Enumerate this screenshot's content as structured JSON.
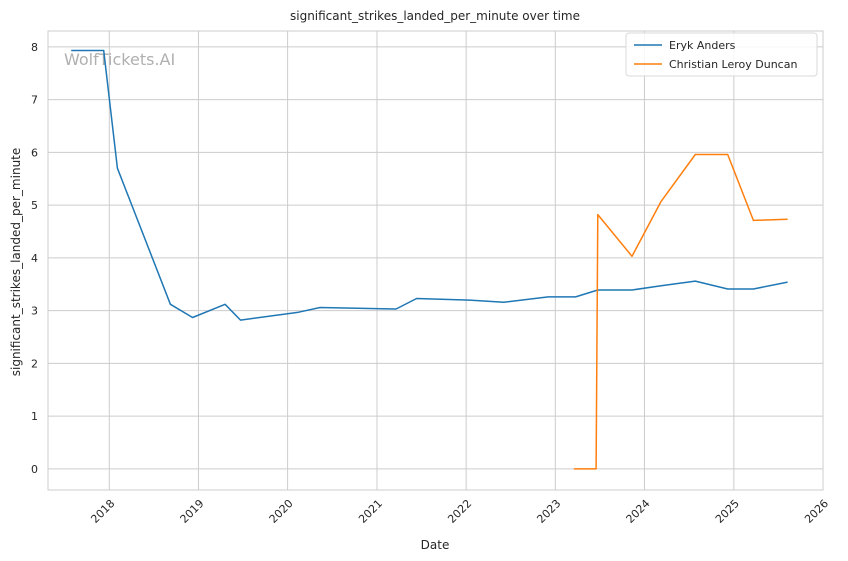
{
  "chart_data": {
    "type": "line",
    "title": "significant_strikes_landed_per_minute over time",
    "xlabel": "Date",
    "ylabel": "significant_strikes_landed_per_minute",
    "xlim": [
      "2017-04-25",
      "2026-01-01"
    ],
    "ylim": [
      -0.4,
      8.3
    ],
    "x_ticks": [
      "2018",
      "2019",
      "2020",
      "2021",
      "2022",
      "2023",
      "2024",
      "2025",
      "2026"
    ],
    "y_ticks": [
      0,
      1,
      2,
      3,
      4,
      5,
      6,
      7,
      8
    ],
    "grid": true,
    "legend_position": "top-right",
    "watermark": "WolfTickets.AI",
    "series": [
      {
        "name": "Eryk Anders",
        "color": "#1f77b4",
        "points": [
          {
            "x": "2017-07-29",
            "y": 7.93
          },
          {
            "x": "2017-12-09",
            "y": 7.93
          },
          {
            "x": "2018-02-03",
            "y": 5.7
          },
          {
            "x": "2018-09-08",
            "y": 3.12
          },
          {
            "x": "2018-12-08",
            "y": 2.87
          },
          {
            "x": "2019-04-20",
            "y": 3.12
          },
          {
            "x": "2019-06-22",
            "y": 2.82
          },
          {
            "x": "2020-02-15",
            "y": 2.97
          },
          {
            "x": "2020-05-13",
            "y": 3.06
          },
          {
            "x": "2021-03-20",
            "y": 3.03
          },
          {
            "x": "2021-06-12",
            "y": 3.23
          },
          {
            "x": "2022-01-15",
            "y": 3.2
          },
          {
            "x": "2022-06-04",
            "y": 3.16
          },
          {
            "x": "2022-12-03",
            "y": 3.26
          },
          {
            "x": "2023-03-25",
            "y": 3.26
          },
          {
            "x": "2023-06-24",
            "y": 3.39
          },
          {
            "x": "2023-11-11",
            "y": 3.39
          },
          {
            "x": "2024-03-09",
            "y": 3.47
          },
          {
            "x": "2024-07-27",
            "y": 3.56
          },
          {
            "x": "2024-12-07",
            "y": 3.41
          },
          {
            "x": "2025-03-22",
            "y": 3.41
          },
          {
            "x": "2025-08-09",
            "y": 3.54
          }
        ]
      },
      {
        "name": "Christian Leroy Duncan",
        "color": "#ff7f0e",
        "points": [
          {
            "x": "2023-03-18",
            "y": 0.0
          },
          {
            "x": "2023-06-17",
            "y": 0.0
          },
          {
            "x": "2023-06-24",
            "y": 4.82
          },
          {
            "x": "2023-11-11",
            "y": 4.03
          },
          {
            "x": "2024-03-09",
            "y": 5.07
          },
          {
            "x": "2024-07-27",
            "y": 5.96
          },
          {
            "x": "2024-12-07",
            "y": 5.96
          },
          {
            "x": "2025-03-22",
            "y": 4.71
          },
          {
            "x": "2025-08-09",
            "y": 4.73
          }
        ]
      }
    ]
  }
}
